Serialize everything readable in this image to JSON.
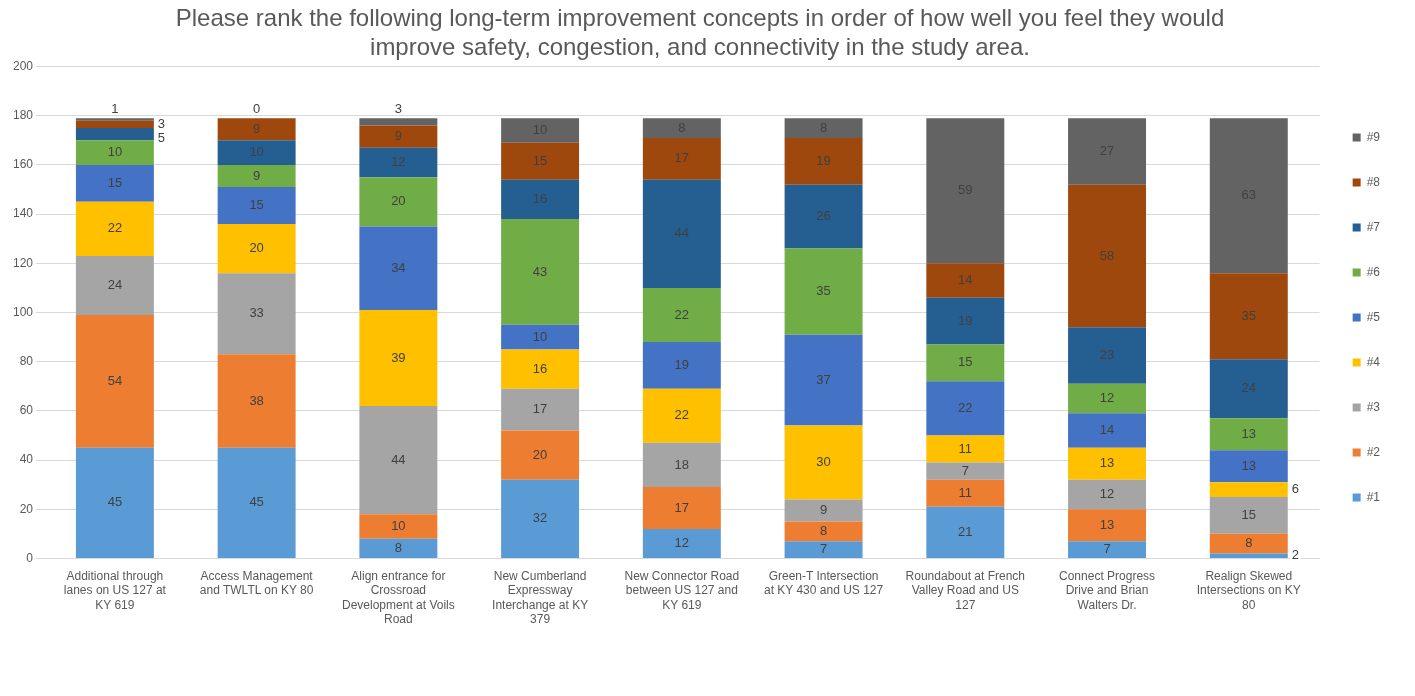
{
  "chart_data": {
    "type": "bar",
    "stacked": true,
    "title": "Please rank the following long-term improvement concepts in order of how well you feel they would improve safety, congestion, and connectivity in the study area.",
    "categories": [
      "Additional through lanes on US 127 at KY 619",
      "Access Management and TWLTL on KY 80",
      "Align entrance for Crossroad Development at Voils Road",
      "New Cumberland Expressway Interchange at KY 379",
      "New Connector Road between US 127 and KY 619",
      "Green-T Intersection at KY 430 and US 127",
      "Roundabout at French Valley Road and US 127",
      "Connect Progress Drive and Brian Walters Dr.",
      "Realign Skewed Intersections on KY 80"
    ],
    "series": [
      {
        "name": "#1",
        "color": "#5b9bd5",
        "values": [
          45,
          45,
          8,
          32,
          12,
          7,
          21,
          7,
          2
        ]
      },
      {
        "name": "#2",
        "color": "#ed7d31",
        "values": [
          54,
          38,
          10,
          20,
          17,
          8,
          11,
          13,
          8
        ]
      },
      {
        "name": "#3",
        "color": "#a5a5a5",
        "values": [
          24,
          33,
          44,
          17,
          18,
          9,
          7,
          12,
          15
        ]
      },
      {
        "name": "#4",
        "color": "#ffc000",
        "values": [
          22,
          20,
          39,
          16,
          22,
          30,
          11,
          13,
          6
        ]
      },
      {
        "name": "#5",
        "color": "#4472c4",
        "values": [
          15,
          15,
          34,
          10,
          19,
          37,
          22,
          14,
          13
        ]
      },
      {
        "name": "#6",
        "color": "#70ad47",
        "values": [
          10,
          9,
          20,
          43,
          22,
          35,
          15,
          12,
          13
        ]
      },
      {
        "name": "#7",
        "color": "#255e91",
        "values": [
          5,
          10,
          12,
          16,
          44,
          26,
          19,
          23,
          24
        ]
      },
      {
        "name": "#8",
        "color": "#9e480e",
        "values": [
          3,
          9,
          9,
          15,
          17,
          19,
          14,
          58,
          35
        ]
      },
      {
        "name": "#9",
        "color": "#636363",
        "values": [
          1,
          0,
          3,
          10,
          8,
          8,
          59,
          27,
          63
        ]
      }
    ],
    "ylim": [
      0,
      200
    ],
    "yticks": [
      0,
      20,
      40,
      60,
      80,
      100,
      120,
      140,
      160,
      180,
      200
    ],
    "grid": "y",
    "legend": "right",
    "data_labels": true
  }
}
